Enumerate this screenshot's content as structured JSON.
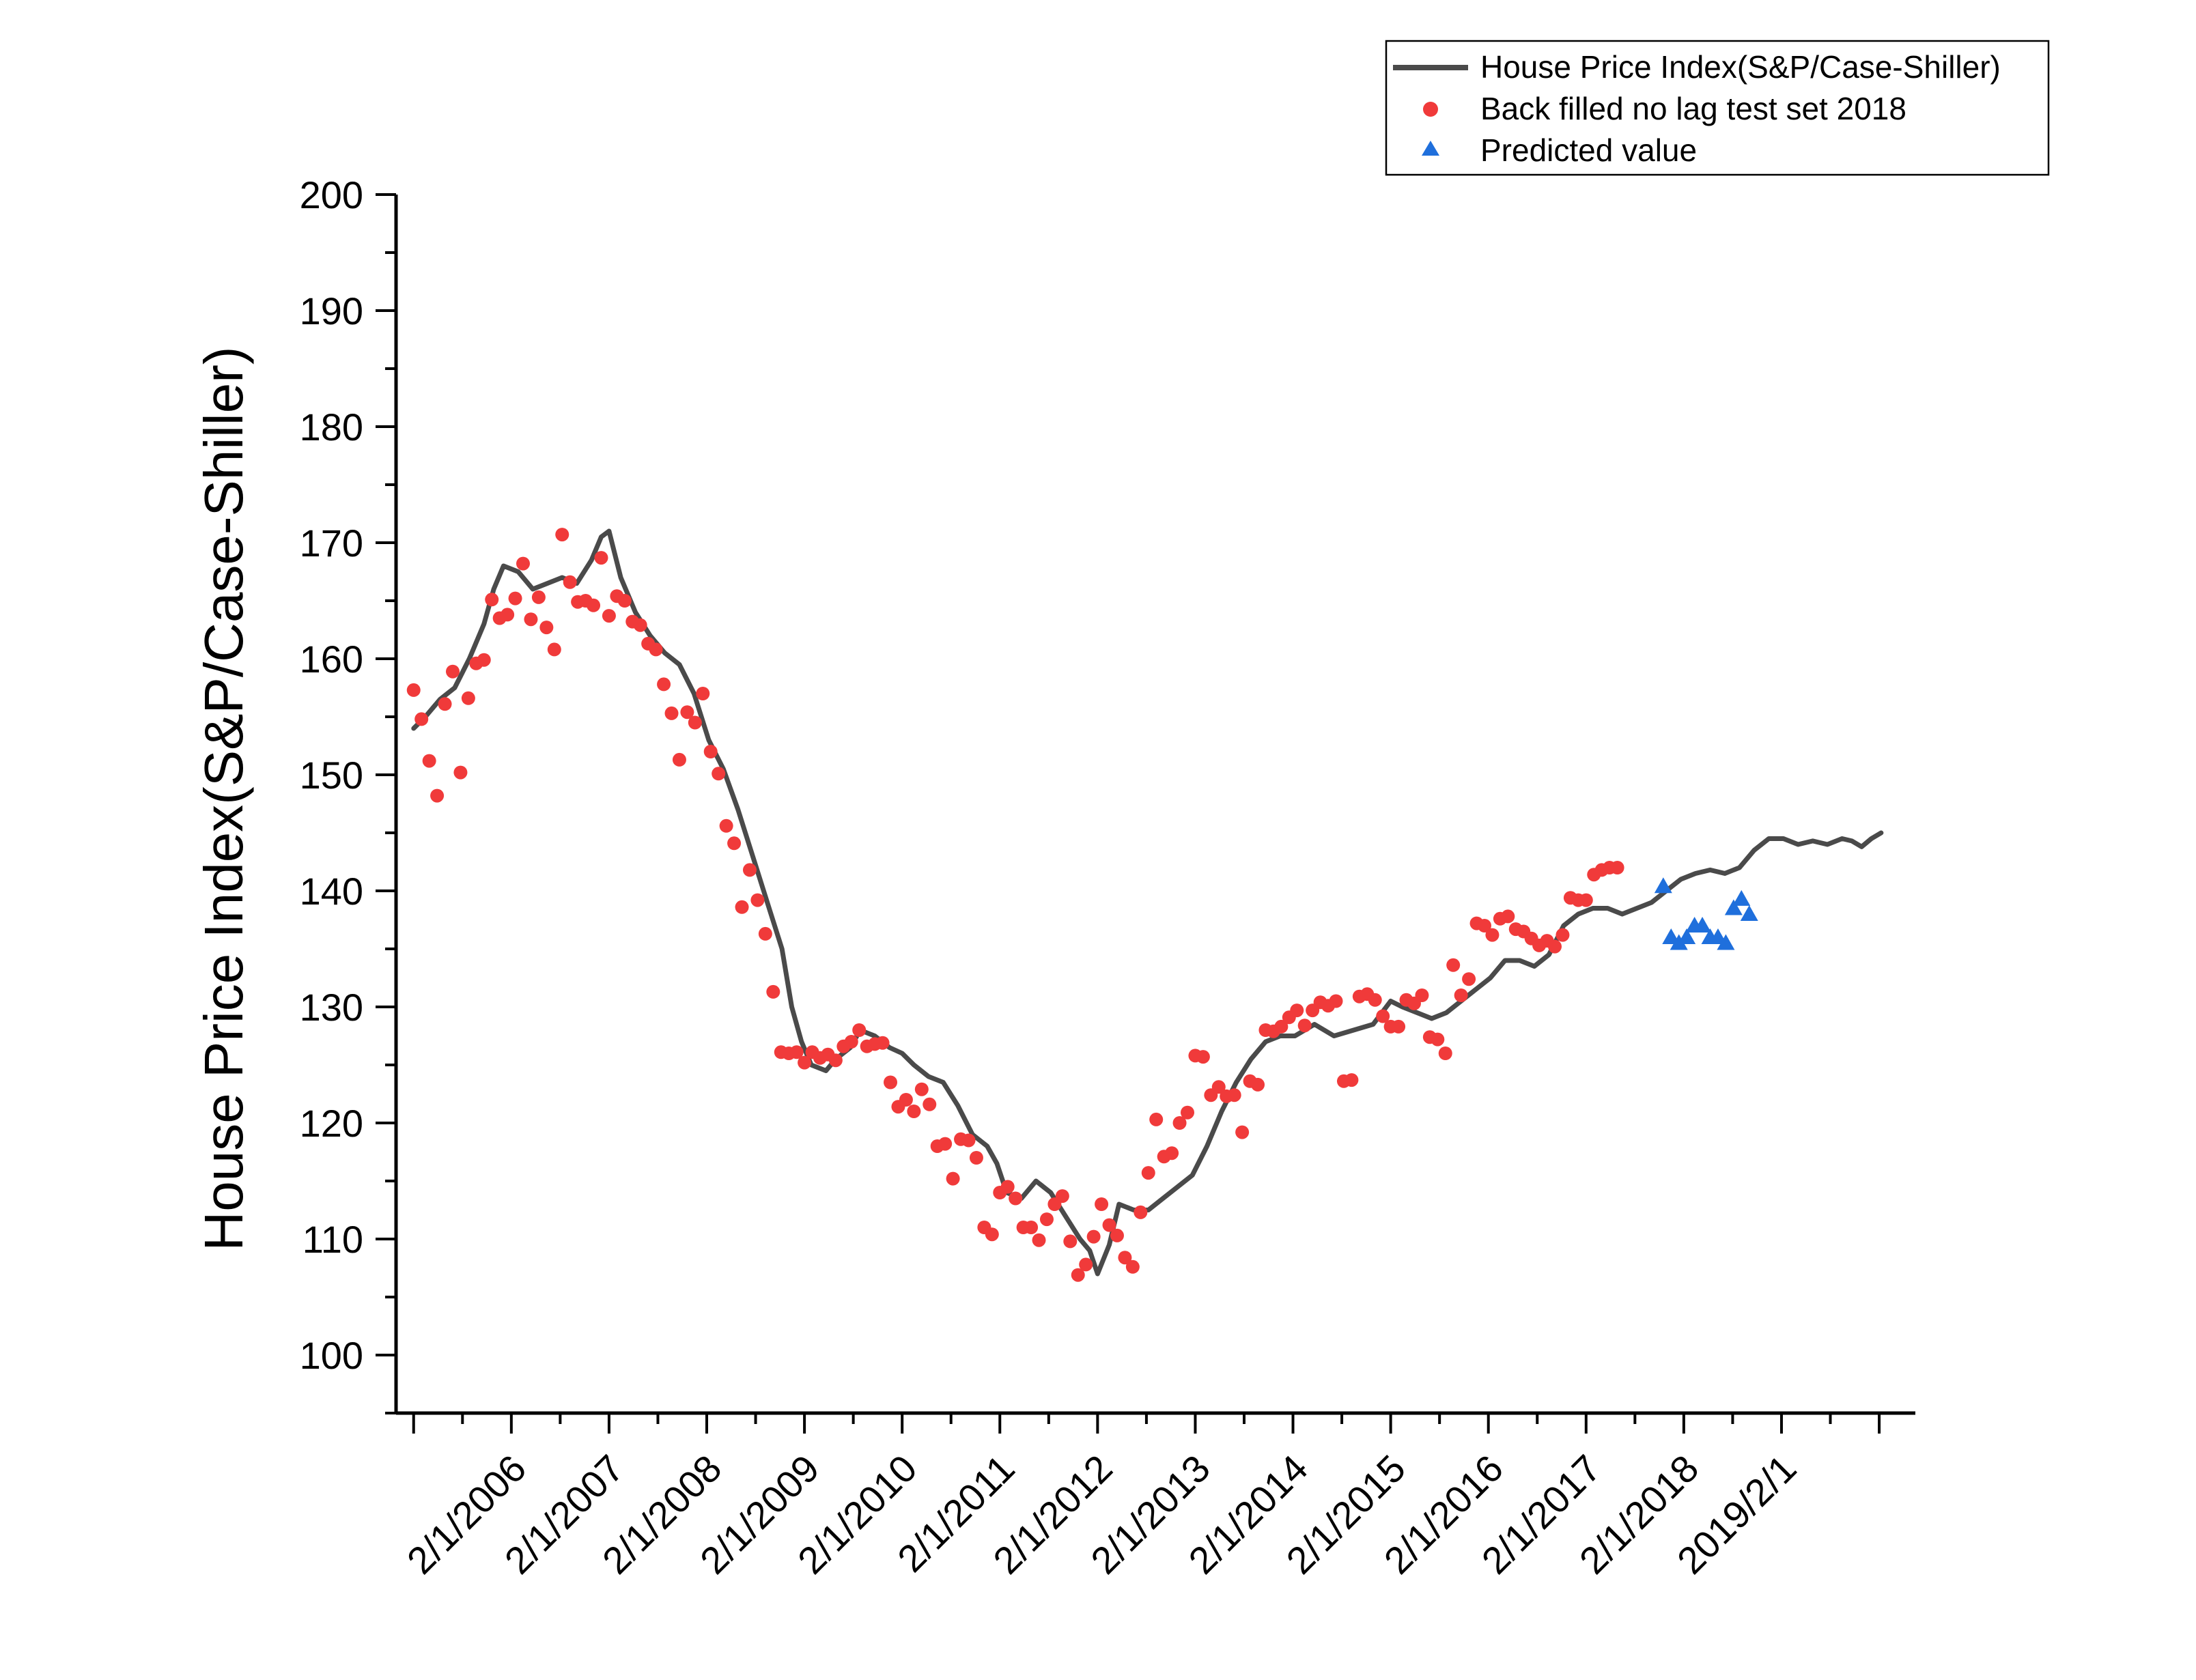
{
  "chart_data": {
    "type": "line",
    "ylabel": "House Price Index(S&P/Case-Shiller)",
    "xlabel": "",
    "ylim": [
      95,
      200
    ],
    "yticks": [
      100,
      110,
      120,
      130,
      140,
      150,
      160,
      170,
      180,
      190,
      200
    ],
    "xlim": [
      2004.9,
      2020.45
    ],
    "xticks": [
      {
        "label": "2/1/2006",
        "t": 2006.08
      },
      {
        "label": "2/1/2007",
        "t": 2007.08
      },
      {
        "label": "2/1/2008",
        "t": 2008.08
      },
      {
        "label": "2/1/2009",
        "t": 2009.08
      },
      {
        "label": "2/1/2010",
        "t": 2010.08
      },
      {
        "label": "2/1/2011",
        "t": 2011.08
      },
      {
        "label": "2/1/2012",
        "t": 2012.08
      },
      {
        "label": "2/1/2013",
        "t": 2013.08
      },
      {
        "label": "2/1/2014",
        "t": 2014.08
      },
      {
        "label": "2/1/2015",
        "t": 2015.08
      },
      {
        "label": "2/1/2016",
        "t": 2016.08
      },
      {
        "label": "2/1/2017",
        "t": 2017.08
      },
      {
        "label": "2/1/2018",
        "t": 2018.08
      },
      {
        "label": "2019/2/1",
        "t": 2019.08
      }
    ],
    "legend": {
      "position": "top-right",
      "entries": [
        {
          "name": "House Price Index(S&P/Case-Shiller)",
          "marker": "line",
          "color": "#4a4a4a"
        },
        {
          "name": "Back filled no lag test set 2018",
          "marker": "circle",
          "color": "#f03a3a"
        },
        {
          "name": "Predicted value",
          "marker": "triangle",
          "color": "#1f6fdc"
        }
      ]
    },
    "series": [
      {
        "name": "House Price Index(S&P/Case-Shiller)",
        "type": "line",
        "color": "#4a4a4a",
        "points": [
          [
            2005.08,
            154.0
          ],
          [
            2005.2,
            155.0
          ],
          [
            2005.35,
            156.5
          ],
          [
            2005.5,
            157.5
          ],
          [
            2005.65,
            160.0
          ],
          [
            2005.8,
            163.0
          ],
          [
            2005.9,
            166.0
          ],
          [
            2006.0,
            168.0
          ],
          [
            2006.15,
            167.5
          ],
          [
            2006.3,
            166.0
          ],
          [
            2006.45,
            166.5
          ],
          [
            2006.6,
            167.0
          ],
          [
            2006.75,
            166.5
          ],
          [
            2006.9,
            168.5
          ],
          [
            2007.0,
            170.5
          ],
          [
            2007.08,
            171.0
          ],
          [
            2007.2,
            167.0
          ],
          [
            2007.35,
            164.0
          ],
          [
            2007.5,
            162.0
          ],
          [
            2007.65,
            160.5
          ],
          [
            2007.8,
            159.5
          ],
          [
            2007.95,
            157.0
          ],
          [
            2008.1,
            153.0
          ],
          [
            2008.25,
            150.5
          ],
          [
            2008.4,
            147.0
          ],
          [
            2008.55,
            143.0
          ],
          [
            2008.7,
            139.0
          ],
          [
            2008.85,
            135.0
          ],
          [
            2008.95,
            130.0
          ],
          [
            2009.05,
            127.0
          ],
          [
            2009.15,
            125.0
          ],
          [
            2009.3,
            124.5
          ],
          [
            2009.4,
            125.5
          ],
          [
            2009.55,
            126.5
          ],
          [
            2009.65,
            128.0
          ],
          [
            2009.8,
            127.5
          ],
          [
            2009.95,
            126.5
          ],
          [
            2010.08,
            126.0
          ],
          [
            2010.2,
            125.0
          ],
          [
            2010.35,
            124.0
          ],
          [
            2010.5,
            123.5
          ],
          [
            2010.65,
            121.5
          ],
          [
            2010.8,
            119.0
          ],
          [
            2010.95,
            118.0
          ],
          [
            2011.05,
            116.5
          ],
          [
            2011.15,
            114.0
          ],
          [
            2011.3,
            113.5
          ],
          [
            2011.45,
            115.0
          ],
          [
            2011.6,
            114.0
          ],
          [
            2011.75,
            112.0
          ],
          [
            2011.9,
            110.0
          ],
          [
            2012.0,
            109.0
          ],
          [
            2012.08,
            107.0
          ],
          [
            2012.2,
            109.5
          ],
          [
            2012.3,
            113.0
          ],
          [
            2012.45,
            112.5
          ],
          [
            2012.6,
            112.5
          ],
          [
            2012.75,
            113.5
          ],
          [
            2012.9,
            114.5
          ],
          [
            2013.05,
            115.5
          ],
          [
            2013.2,
            118.0
          ],
          [
            2013.35,
            121.0
          ],
          [
            2013.5,
            123.5
          ],
          [
            2013.65,
            125.5
          ],
          [
            2013.8,
            127.0
          ],
          [
            2013.95,
            127.5
          ],
          [
            2014.1,
            127.5
          ],
          [
            2014.3,
            128.5
          ],
          [
            2014.5,
            127.5
          ],
          [
            2014.7,
            128.0
          ],
          [
            2014.9,
            128.5
          ],
          [
            2015.08,
            130.5
          ],
          [
            2015.2,
            130.0
          ],
          [
            2015.35,
            129.5
          ],
          [
            2015.5,
            129.0
          ],
          [
            2015.65,
            129.5
          ],
          [
            2015.8,
            130.5
          ],
          [
            2015.95,
            131.5
          ],
          [
            2016.1,
            132.5
          ],
          [
            2016.25,
            134.0
          ],
          [
            2016.4,
            134.0
          ],
          [
            2016.55,
            133.5
          ],
          [
            2016.7,
            134.5
          ],
          [
            2016.85,
            137.0
          ],
          [
            2017.0,
            138.0
          ],
          [
            2017.15,
            138.5
          ],
          [
            2017.3,
            138.5
          ],
          [
            2017.45,
            138.0
          ],
          [
            2017.6,
            138.5
          ],
          [
            2017.75,
            139.0
          ],
          [
            2017.9,
            140.0
          ],
          [
            2018.05,
            141.0
          ],
          [
            2018.2,
            141.5
          ],
          [
            2018.35,
            141.8
          ],
          [
            2018.5,
            141.5
          ],
          [
            2018.65,
            142.0
          ],
          [
            2018.8,
            143.5
          ],
          [
            2018.95,
            144.5
          ],
          [
            2019.1,
            144.5
          ],
          [
            2019.25,
            144.0
          ],
          [
            2019.4,
            144.3
          ],
          [
            2019.55,
            144.0
          ],
          [
            2019.7,
            144.5
          ],
          [
            2019.8,
            144.3
          ],
          [
            2019.9,
            143.8
          ],
          [
            2020.0,
            144.5
          ],
          [
            2020.1,
            145.0
          ]
        ]
      },
      {
        "name": "Back filled no lag test set 2018",
        "type": "scatter",
        "marker": "circle",
        "color": "#f03a3a",
        "points": [
          [
            2005.08,
            157.3
          ],
          [
            2005.16,
            154.8
          ],
          [
            2005.24,
            151.2
          ],
          [
            2005.32,
            148.2
          ],
          [
            2005.4,
            156.1
          ],
          [
            2005.48,
            158.9
          ],
          [
            2005.56,
            150.2
          ],
          [
            2005.64,
            156.6
          ],
          [
            2005.72,
            159.6
          ],
          [
            2005.8,
            159.9
          ],
          [
            2005.88,
            165.1
          ],
          [
            2005.96,
            163.5
          ],
          [
            2006.04,
            163.8
          ],
          [
            2006.12,
            165.2
          ],
          [
            2006.2,
            168.2
          ],
          [
            2006.28,
            163.4
          ],
          [
            2006.36,
            165.3
          ],
          [
            2006.44,
            162.7
          ],
          [
            2006.52,
            160.8
          ],
          [
            2006.6,
            170.7
          ],
          [
            2006.68,
            166.6
          ],
          [
            2006.76,
            164.9
          ],
          [
            2006.84,
            165.0
          ],
          [
            2006.92,
            164.6
          ],
          [
            2007.0,
            168.7
          ],
          [
            2007.08,
            163.7
          ],
          [
            2007.16,
            165.4
          ],
          [
            2007.24,
            165.0
          ],
          [
            2007.32,
            163.2
          ],
          [
            2007.4,
            162.9
          ],
          [
            2007.48,
            161.3
          ],
          [
            2007.56,
            160.8
          ],
          [
            2007.64,
            157.8
          ],
          [
            2007.72,
            155.3
          ],
          [
            2007.8,
            151.3
          ],
          [
            2007.88,
            155.4
          ],
          [
            2007.96,
            154.5
          ],
          [
            2008.04,
            157.0
          ],
          [
            2008.12,
            152.0
          ],
          [
            2008.2,
            150.1
          ],
          [
            2008.28,
            145.6
          ],
          [
            2008.36,
            144.1
          ],
          [
            2008.44,
            138.6
          ],
          [
            2008.52,
            141.8
          ],
          [
            2008.6,
            139.2
          ],
          [
            2008.68,
            136.3
          ],
          [
            2008.76,
            131.3
          ],
          [
            2008.84,
            126.1
          ],
          [
            2008.92,
            126.0
          ],
          [
            2009.0,
            126.1
          ],
          [
            2009.08,
            125.2
          ],
          [
            2009.16,
            126.1
          ],
          [
            2009.24,
            125.6
          ],
          [
            2009.32,
            125.9
          ],
          [
            2009.4,
            125.4
          ],
          [
            2009.48,
            126.6
          ],
          [
            2009.56,
            127.0
          ],
          [
            2009.64,
            128.0
          ],
          [
            2009.72,
            126.6
          ],
          [
            2009.8,
            126.8
          ],
          [
            2009.88,
            126.9
          ],
          [
            2009.96,
            123.5
          ],
          [
            2010.04,
            121.4
          ],
          [
            2010.12,
            122.0
          ],
          [
            2010.2,
            121.0
          ],
          [
            2010.28,
            122.9
          ],
          [
            2010.36,
            121.6
          ],
          [
            2010.44,
            118.0
          ],
          [
            2010.52,
            118.2
          ],
          [
            2010.6,
            115.2
          ],
          [
            2010.68,
            118.6
          ],
          [
            2010.76,
            118.5
          ],
          [
            2010.84,
            117.0
          ],
          [
            2010.92,
            111.0
          ],
          [
            2011.0,
            110.4
          ],
          [
            2011.08,
            114.0
          ],
          [
            2011.16,
            114.5
          ],
          [
            2011.24,
            113.5
          ],
          [
            2011.32,
            111.0
          ],
          [
            2011.4,
            111.0
          ],
          [
            2011.48,
            109.9
          ],
          [
            2011.56,
            111.7
          ],
          [
            2011.64,
            113.0
          ],
          [
            2011.72,
            113.7
          ],
          [
            2011.8,
            109.8
          ],
          [
            2011.88,
            106.9
          ],
          [
            2011.96,
            107.8
          ],
          [
            2012.04,
            110.2
          ],
          [
            2012.12,
            113.0
          ],
          [
            2012.2,
            111.2
          ],
          [
            2012.28,
            110.3
          ],
          [
            2012.36,
            108.4
          ],
          [
            2012.44,
            107.6
          ],
          [
            2012.52,
            112.3
          ],
          [
            2012.6,
            115.7
          ],
          [
            2012.68,
            120.3
          ],
          [
            2012.76,
            117.1
          ],
          [
            2012.84,
            117.4
          ],
          [
            2012.92,
            120.0
          ],
          [
            2013.0,
            120.9
          ],
          [
            2013.08,
            125.8
          ],
          [
            2013.16,
            125.7
          ],
          [
            2013.24,
            122.4
          ],
          [
            2013.32,
            123.1
          ],
          [
            2013.4,
            122.3
          ],
          [
            2013.48,
            122.4
          ],
          [
            2013.56,
            119.2
          ],
          [
            2013.64,
            123.6
          ],
          [
            2013.72,
            123.3
          ],
          [
            2013.8,
            128.0
          ],
          [
            2013.88,
            127.9
          ],
          [
            2013.96,
            128.3
          ],
          [
            2014.04,
            129.1
          ],
          [
            2014.12,
            129.7
          ],
          [
            2014.2,
            128.4
          ],
          [
            2014.28,
            129.7
          ],
          [
            2014.36,
            130.4
          ],
          [
            2014.44,
            130.1
          ],
          [
            2014.52,
            130.5
          ],
          [
            2014.6,
            123.6
          ],
          [
            2014.68,
            123.7
          ],
          [
            2014.76,
            130.9
          ],
          [
            2014.84,
            131.1
          ],
          [
            2014.92,
            130.6
          ],
          [
            2015.0,
            129.2
          ],
          [
            2015.08,
            128.3
          ],
          [
            2015.16,
            128.3
          ],
          [
            2015.24,
            130.6
          ],
          [
            2015.32,
            130.3
          ],
          [
            2015.4,
            131.0
          ],
          [
            2015.48,
            127.4
          ],
          [
            2015.56,
            127.2
          ],
          [
            2015.64,
            126.0
          ],
          [
            2015.72,
            133.6
          ],
          [
            2015.8,
            131.0
          ],
          [
            2015.88,
            132.4
          ],
          [
            2015.96,
            137.2
          ],
          [
            2016.04,
            137.0
          ],
          [
            2016.12,
            136.2
          ],
          [
            2016.2,
            137.6
          ],
          [
            2016.28,
            137.8
          ],
          [
            2016.36,
            136.7
          ],
          [
            2016.44,
            136.5
          ],
          [
            2016.52,
            135.9
          ],
          [
            2016.6,
            135.3
          ],
          [
            2016.68,
            135.7
          ],
          [
            2016.76,
            135.2
          ],
          [
            2016.84,
            136.2
          ],
          [
            2016.92,
            139.4
          ],
          [
            2017.0,
            139.2
          ],
          [
            2017.08,
            139.2
          ],
          [
            2017.16,
            141.4
          ],
          [
            2017.24,
            141.8
          ],
          [
            2017.32,
            142.0
          ],
          [
            2017.4,
            142.0
          ]
        ]
      },
      {
        "name": "Predicted value",
        "type": "scatter",
        "marker": "triangle",
        "color": "#1f6fdc",
        "points": [
          [
            2017.87,
            140.4
          ],
          [
            2017.95,
            136.0
          ],
          [
            2018.03,
            135.5
          ],
          [
            2018.11,
            136.0
          ],
          [
            2018.19,
            137.0
          ],
          [
            2018.27,
            137.0
          ],
          [
            2018.35,
            136.0
          ],
          [
            2018.43,
            136.0
          ],
          [
            2018.51,
            135.5
          ],
          [
            2018.59,
            138.5
          ],
          [
            2018.67,
            139.3
          ],
          [
            2018.75,
            138.0
          ]
        ]
      }
    ]
  }
}
